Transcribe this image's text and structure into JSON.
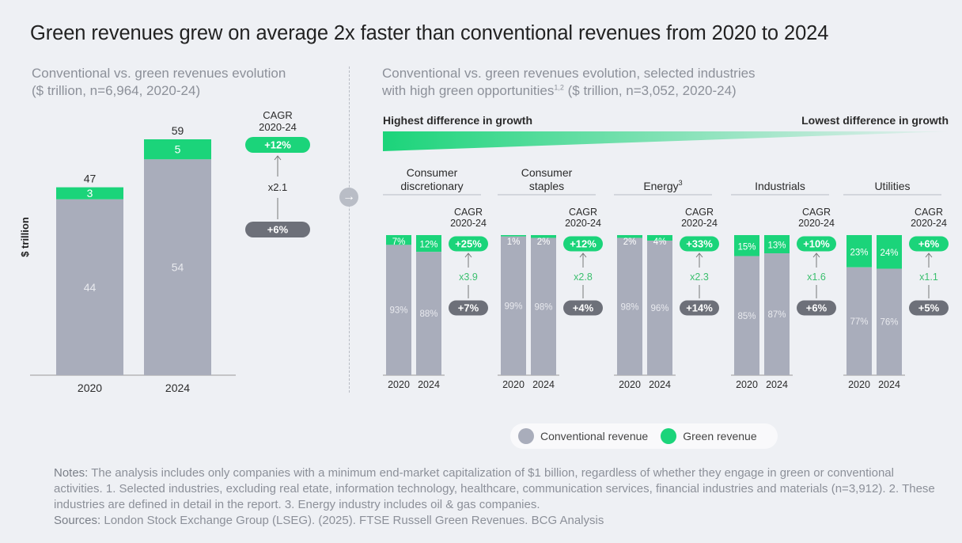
{
  "title": "Green revenues grew on average 2x faster than conventional revenues from 2020 to 2024",
  "left_subtitle": [
    "Conventional vs. green revenues evolution",
    "($ trillion, n=6,964, 2020-24)"
  ],
  "right_subtitle_line1": "Conventional vs. green revenues evolution, selected industries",
  "right_subtitle_line2_a": "with high green opportunities",
  "right_subtitle_line2_sup": "1,2",
  "right_subtitle_line2_b": " ($ trillion, n=3,052, 2020-24)",
  "gradient_left_label": "Highest difference in growth",
  "gradient_right_label": "Lowest difference in growth",
  "arrow_glyph": "→",
  "legend": {
    "conventional": "Conventional revenue",
    "green": "Green revenue"
  },
  "notes": {
    "notes_label": "Notes:",
    "notes_text": " The analysis includes only companies with a minimum end-market capitalization of $1 billion, regardless of whether they engage in green or conventional activities. 1. Selected industries, excluding real etate, information technology, healthcare, communication services, financial industries and materials (n=3,912). 2. These industries are defined in detail in the report. 3. Energy industry includes oil & gas companies.",
    "sources_label": "Sources:",
    "sources_text": " London Stock Exchange Group (LSEG). (2025). FTSE Russell Green Revenues. BCG Analysis"
  },
  "colors": {
    "conventional": "#a9adbb",
    "green": "#1bd47a",
    "badge_dark": "#6d7079",
    "background": "#eef0f4"
  },
  "chart_data": [
    {
      "type": "bar",
      "stacked": true,
      "ylabel": "$ trillion",
      "categories": [
        "2020",
        "2024"
      ],
      "series": [
        {
          "name": "Conventional revenue",
          "values": [
            44,
            54
          ]
        },
        {
          "name": "Green revenue",
          "values": [
            3,
            5
          ]
        }
      ],
      "totals": [
        47,
        59
      ],
      "cagr_label": "CAGR\n2020-24",
      "cagr_green": "+12%",
      "cagr_conventional": "+6%",
      "multiplier": "x2.1"
    },
    {
      "type": "bar",
      "stacked": true,
      "normalized": true,
      "categories": [
        "2020",
        "2024"
      ],
      "cagr_label": "CAGR\n2020-24",
      "panels": [
        {
          "industry": "Consumer\ndiscretionary",
          "sup": "",
          "conventional": [
            93,
            88
          ],
          "green": [
            7,
            12
          ],
          "labels_conventional": [
            "93%",
            "88%"
          ],
          "labels_green": [
            "7%",
            "12%"
          ],
          "cagr_green": "+25%",
          "cagr_conventional": "+7%",
          "multiplier": "x3.9"
        },
        {
          "industry": "Consumer\nstaples",
          "sup": "",
          "conventional": [
            99,
            98
          ],
          "green": [
            1,
            2
          ],
          "labels_conventional": [
            "99%",
            "98%"
          ],
          "labels_green": [
            "1%",
            "2%"
          ],
          "cagr_green": "+12%",
          "cagr_conventional": "+4%",
          "multiplier": "x2.8"
        },
        {
          "industry": "Energy",
          "sup": "3",
          "conventional": [
            98,
            96
          ],
          "green": [
            2,
            4
          ],
          "labels_conventional": [
            "98%",
            "96%"
          ],
          "labels_green": [
            "2%",
            "4%"
          ],
          "cagr_green": "+33%",
          "cagr_conventional": "+14%",
          "multiplier": "x2.3"
        },
        {
          "industry": "Industrials",
          "sup": "",
          "conventional": [
            85,
            87
          ],
          "green": [
            15,
            13
          ],
          "labels_conventional": [
            "85%",
            "87%"
          ],
          "labels_green": [
            "15%",
            "13%"
          ],
          "cagr_green": "+10%",
          "cagr_conventional": "+6%",
          "multiplier": "x1.6"
        },
        {
          "industry": "Utilities",
          "sup": "",
          "conventional": [
            77,
            76
          ],
          "green": [
            23,
            24
          ],
          "labels_conventional": [
            "77%",
            "76%"
          ],
          "labels_green": [
            "23%",
            "24%"
          ],
          "cagr_green": "+6%",
          "cagr_conventional": "+5%",
          "multiplier": "x1.1"
        }
      ]
    }
  ]
}
